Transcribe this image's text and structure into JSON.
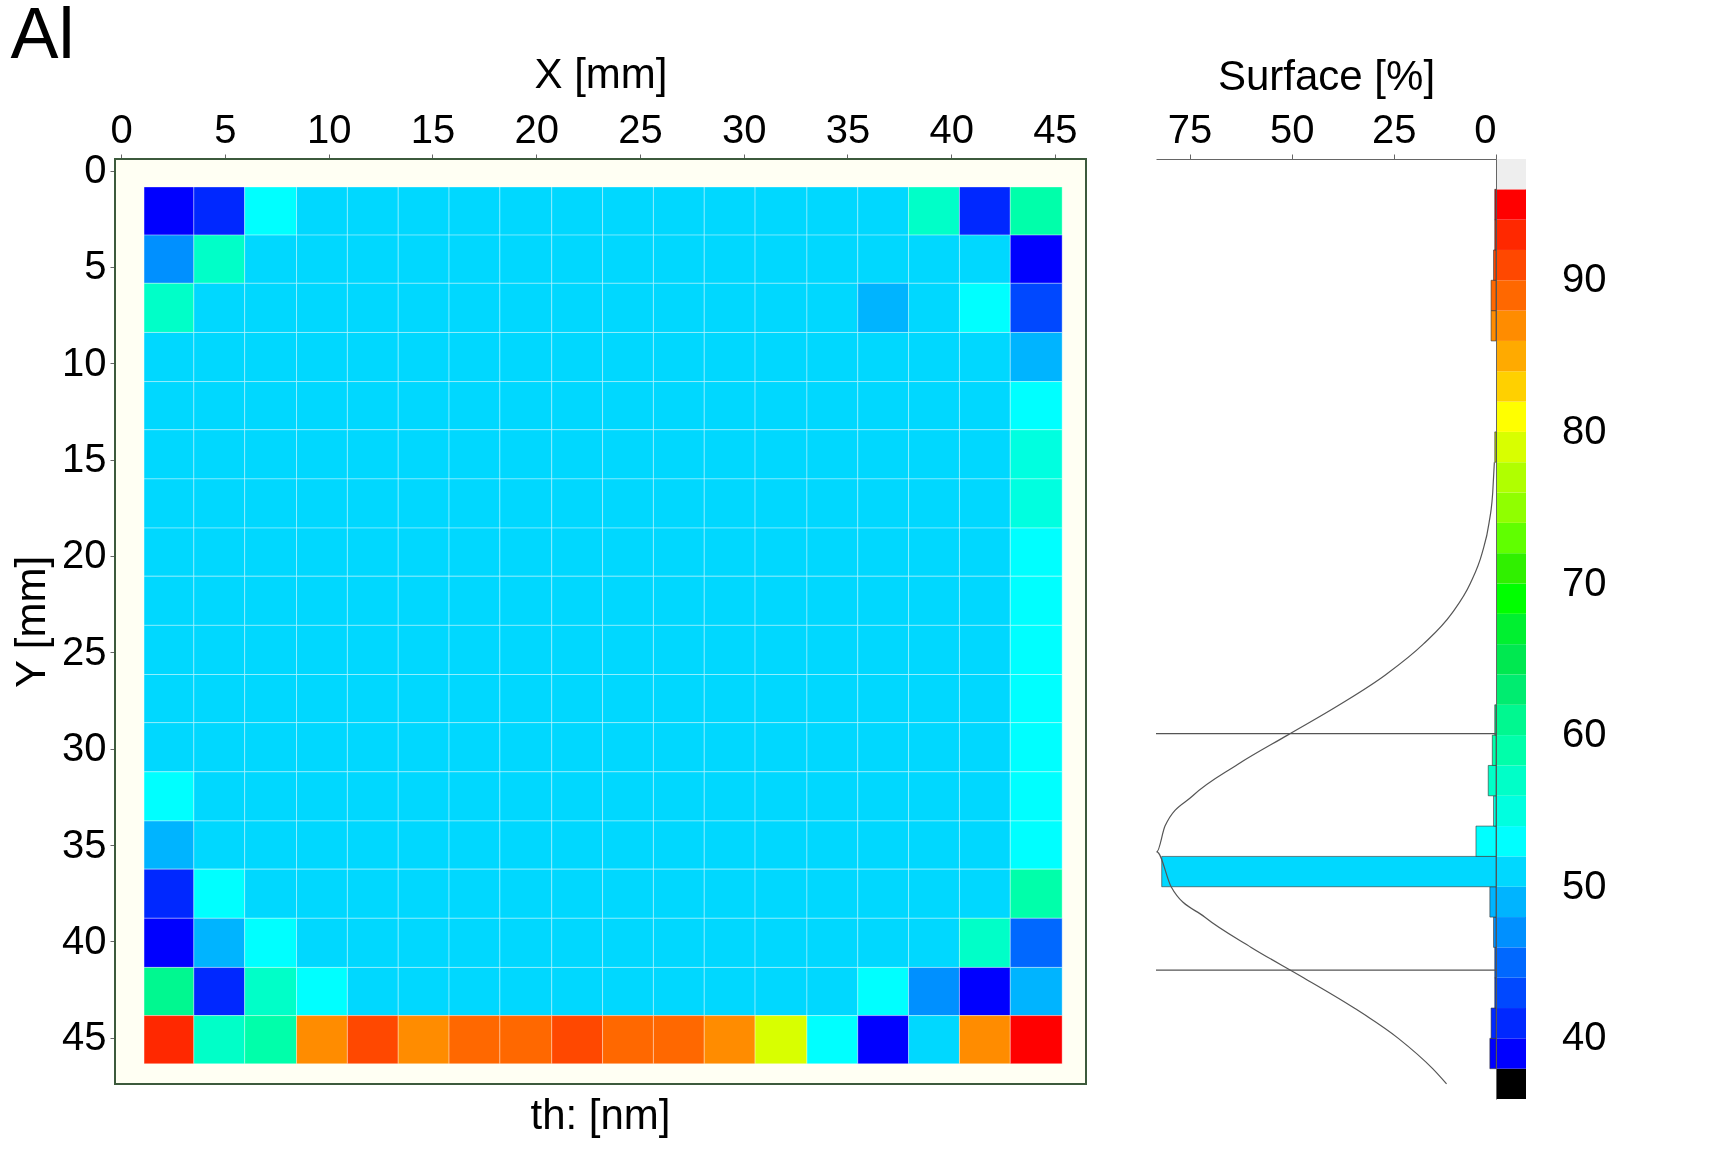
{
  "chart_data": [
    {
      "type": "heatmap",
      "title": "Al",
      "xlabel": "X [mm]",
      "ylabel": "Y [mm]",
      "clabel": "th: [nm]",
      "x": [
        2.3,
        4.7,
        7.2,
        9.7,
        12.1,
        14.6,
        17.0,
        19.5,
        22.0,
        24.4,
        26.9,
        29.3,
        31.8,
        34.3,
        36.7,
        39.2,
        41.6,
        44.1
      ],
      "y": [
        2.1,
        4.6,
        7.1,
        9.7,
        12.2,
        14.7,
        17.3,
        19.8,
        22.3,
        24.9,
        27.4,
        29.9,
        32.5,
        35.0,
        37.5,
        40.1,
        42.6,
        45.1
      ],
      "cells": [
        [
          39,
          41,
          53,
          51,
          51,
          51,
          51,
          51,
          51,
          51,
          51,
          51,
          51,
          51,
          51,
          57,
          41,
          59
        ],
        [
          47,
          57,
          51,
          51,
          51,
          51,
          51,
          51,
          51,
          51,
          51,
          51,
          51,
          51,
          51,
          51,
          51,
          39
        ],
        [
          57,
          51,
          51,
          51,
          51,
          51,
          51,
          51,
          51,
          51,
          51,
          51,
          51,
          51,
          49,
          51,
          53,
          43
        ],
        [
          51,
          51,
          51,
          51,
          51,
          51,
          51,
          51,
          51,
          51,
          51,
          51,
          51,
          51,
          51,
          51,
          51,
          49
        ],
        [
          51,
          51,
          51,
          51,
          51,
          51,
          51,
          51,
          51,
          51,
          51,
          51,
          51,
          51,
          51,
          51,
          51,
          53
        ],
        [
          51,
          51,
          51,
          51,
          51,
          51,
          51,
          51,
          51,
          51,
          51,
          51,
          51,
          51,
          51,
          51,
          51,
          55
        ],
        [
          51,
          51,
          51,
          51,
          51,
          51,
          51,
          51,
          51,
          51,
          51,
          51,
          51,
          51,
          51,
          51,
          51,
          55
        ],
        [
          51,
          51,
          51,
          51,
          51,
          51,
          51,
          51,
          51,
          51,
          51,
          51,
          51,
          51,
          51,
          51,
          51,
          53
        ],
        [
          51,
          51,
          51,
          51,
          51,
          51,
          51,
          51,
          51,
          51,
          51,
          51,
          51,
          51,
          51,
          51,
          51,
          53
        ],
        [
          51,
          51,
          51,
          51,
          51,
          51,
          51,
          51,
          51,
          51,
          51,
          51,
          51,
          51,
          51,
          51,
          51,
          53
        ],
        [
          51,
          51,
          51,
          51,
          51,
          51,
          51,
          51,
          51,
          51,
          51,
          51,
          51,
          51,
          51,
          51,
          51,
          53
        ],
        [
          51,
          51,
          51,
          51,
          51,
          51,
          51,
          51,
          51,
          51,
          51,
          51,
          51,
          51,
          51,
          51,
          51,
          53
        ],
        [
          53,
          51,
          51,
          51,
          51,
          51,
          51,
          51,
          51,
          51,
          51,
          51,
          51,
          51,
          51,
          51,
          51,
          53
        ],
        [
          49,
          51,
          51,
          51,
          51,
          51,
          51,
          51,
          51,
          51,
          51,
          51,
          51,
          51,
          51,
          51,
          51,
          53
        ],
        [
          41,
          53,
          51,
          51,
          51,
          51,
          51,
          51,
          51,
          51,
          51,
          51,
          51,
          51,
          51,
          51,
          51,
          59
        ],
        [
          39,
          49,
          53,
          51,
          51,
          51,
          51,
          51,
          51,
          51,
          51,
          51,
          51,
          51,
          51,
          51,
          57,
          45
        ],
        [
          61,
          41,
          57,
          53,
          51,
          51,
          51,
          51,
          51,
          51,
          51,
          51,
          51,
          51,
          53,
          47,
          39,
          49
        ],
        [
          93,
          57,
          59,
          87,
          91,
          87,
          89,
          89,
          91,
          89,
          89,
          87,
          79,
          53,
          39,
          51,
          87,
          95
        ]
      ],
      "xlim": [
        -0.3,
        46.5
      ],
      "xticks": [
        0,
        5,
        10,
        15,
        20,
        25,
        30,
        35,
        40,
        45
      ],
      "ylim": [
        47.4,
        -0.6
      ],
      "yticks": [
        0,
        5,
        10,
        15,
        20,
        25,
        30,
        35,
        40,
        45
      ],
      "clim": [
        38,
        96
      ],
      "cticks": [
        40,
        50,
        60,
        70,
        80,
        90
      ]
    },
    {
      "type": "histogram",
      "orientation": "horizontal",
      "xlabel": "Surface [%]",
      "tick_labels": "x",
      "bins": [
        38,
        40,
        42,
        44,
        46,
        48,
        50,
        52,
        54,
        56,
        58,
        60,
        62,
        64,
        66,
        68,
        70,
        72,
        74,
        76,
        78,
        80,
        82,
        84,
        86,
        88,
        90,
        92,
        94,
        96
      ],
      "series": [
        {
          "type": "histogram",
          "colors": [
            "#0000ff",
            "#0028ff",
            "#0048ff",
            "#0068ff",
            "#0090ff",
            "#00b4ff",
            "#00d8ff",
            "#00ffff",
            "#00ffe0",
            "#00ffc8",
            "#00ffaa",
            "#00f890",
            "#00ec70",
            "#00e850",
            "#00f030",
            "#00ff00",
            "#30f000",
            "#60ff00",
            "#90ff00",
            "#b0ff00",
            "#d8ff00",
            "#ffff00",
            "#ffd000",
            "#ffaa00",
            "#ff8c00",
            "#ff6800",
            "#ff4800",
            "#ff2800",
            "#ff0000"
          ],
          "values": [
            1.5,
            1.2,
            0.3,
            0.3,
            0.6,
            1.5,
            81.8,
            4.9,
            0.6,
            1.9,
            0.9,
            0.3,
            0,
            0,
            0,
            0,
            0,
            0,
            0,
            0,
            0.3,
            0,
            0,
            0,
            1.2,
            1.2,
            0.6,
            0.3,
            0.3
          ]
        },
        {
          "type": "line",
          "color": "#555555",
          "x": [
            37,
            38,
            40,
            42,
            44,
            46,
            48,
            50,
            52.3,
            54,
            56,
            58,
            60,
            62,
            64,
            66,
            68,
            70,
            72,
            74,
            76,
            78
          ],
          "values": [
            12.1,
            15.5,
            23.9,
            34.7,
            47.1,
            59.9,
            71.3,
            79.5,
            83,
            81.0,
            74.2,
            63.6,
            51.0,
            38.3,
            26.9,
            17.8,
            10.9,
            6.3,
            3.4,
            1.7,
            0.8,
            0.4
          ]
        }
      ],
      "ref_lines": [
        {
          "axis": "y",
          "value": 60.1,
          "color": "#555555"
        },
        {
          "axis": "y",
          "value": 44.5,
          "color": "#555555"
        }
      ],
      "xlim": [
        83.2,
        0
      ],
      "xticks": [
        75,
        50,
        25,
        0
      ],
      "ylim": [
        36,
        98
      ],
      "yticks": [
        40,
        50,
        60,
        70,
        80,
        90
      ]
    }
  ]
}
